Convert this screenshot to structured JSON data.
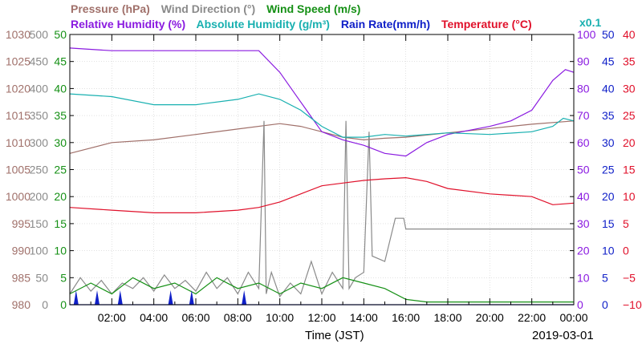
{
  "chart_data": {
    "type": "line",
    "header": {
      "row1": [
        {
          "text": "Pressure (hPa)",
          "color": "#a0706a"
        },
        {
          "text": "Wind Direction (°)",
          "color": "#8a8a8a"
        },
        {
          "text": "Wind Speed (m/s)",
          "color": "#159015"
        }
      ],
      "row2": [
        {
          "text": "Relative Humidity (%)",
          "color": "#8a1ae0"
        },
        {
          "text": "Absolute Humidity (g/m³)",
          "color": "#18b0b0"
        },
        {
          "text": "Rain Rate(mm/h)",
          "color": "#1020c8"
        },
        {
          "text": "Temperature (°C)",
          "color": "#e0102a"
        }
      ],
      "multiplier": "x0.1",
      "multiplier_color": "#18b0b0"
    },
    "xlabel": "Time (JST)",
    "date": "2019-03-01",
    "x_range_hours": [
      0,
      24
    ],
    "x_ticks": [
      "02:00",
      "04:00",
      "06:00",
      "08:00",
      "10:00",
      "12:00",
      "14:00",
      "16:00",
      "18:00",
      "20:00",
      "22:00",
      "00:00"
    ],
    "axes": {
      "pressure": {
        "color": "#a0706a",
        "range": [
          980,
          1030
        ],
        "ticks": [
          "980",
          "985",
          "990",
          "995",
          "1000",
          "1005",
          "1010",
          "1015",
          "1020",
          "1025",
          "1030"
        ]
      },
      "wind_direction": {
        "color": "#8a8a8a",
        "range": [
          0,
          500
        ],
        "ticks": [
          "0",
          "50",
          "100",
          "150",
          "200",
          "250",
          "300",
          "350",
          "400",
          "450",
          "500"
        ]
      },
      "wind_speed": {
        "color": "#159015",
        "range": [
          0,
          50
        ],
        "ticks": [
          "0",
          "5",
          "10",
          "15",
          "20",
          "25",
          "30",
          "35",
          "40",
          "45",
          "50"
        ]
      },
      "relative_humidity": {
        "color": "#8a1ae0",
        "range": [
          0,
          100
        ],
        "ticks": [
          "0",
          "10",
          "20",
          "30",
          "40",
          "50",
          "60",
          "70",
          "80",
          "90",
          "100"
        ]
      },
      "rain_rate": {
        "color": "#1020c8",
        "range": [
          0,
          50
        ],
        "ticks": [
          "0",
          "5",
          "10",
          "15",
          "20",
          "25",
          "30",
          "35",
          "40",
          "45",
          "50"
        ]
      },
      "temperature": {
        "color": "#e0102a",
        "range": [
          -10,
          40
        ],
        "ticks": [
          "−10",
          "−5",
          "0",
          "5",
          "10",
          "15",
          "20",
          "25",
          "30",
          "35",
          "40"
        ]
      }
    },
    "series": [
      {
        "name": "Pressure (hPa)",
        "axis": "pressure",
        "color": "#a0706a",
        "points": [
          [
            0,
            1008
          ],
          [
            2,
            1010
          ],
          [
            4,
            1010.5
          ],
          [
            6,
            1011.5
          ],
          [
            8,
            1012.5
          ],
          [
            10,
            1013.5
          ],
          [
            11,
            1013
          ],
          [
            12,
            1012
          ],
          [
            13,
            1011
          ],
          [
            14,
            1010.5
          ],
          [
            15,
            1010.8
          ],
          [
            16,
            1011
          ],
          [
            18,
            1011.8
          ],
          [
            20,
            1012.6
          ],
          [
            22,
            1013.4
          ],
          [
            24,
            1014
          ]
        ]
      },
      {
        "name": "Wind Direction (°)",
        "axis": "wind_direction",
        "color": "#8a8a8a",
        "points": [
          [
            0,
            20
          ],
          [
            0.5,
            50
          ],
          [
            1,
            25
          ],
          [
            1.5,
            45
          ],
          [
            2,
            20
          ],
          [
            2.5,
            40
          ],
          [
            3,
            30
          ],
          [
            3.5,
            50
          ],
          [
            4,
            25
          ],
          [
            4.5,
            55
          ],
          [
            5,
            30
          ],
          [
            5.5,
            45
          ],
          [
            6,
            25
          ],
          [
            6.5,
            60
          ],
          [
            7,
            30
          ],
          [
            7.5,
            50
          ],
          [
            8,
            20
          ],
          [
            8.5,
            60
          ],
          [
            9,
            30
          ],
          [
            9.25,
            340
          ],
          [
            9.35,
            20
          ],
          [
            9.6,
            60
          ],
          [
            10,
            15
          ],
          [
            10.5,
            40
          ],
          [
            11,
            20
          ],
          [
            11.5,
            80
          ],
          [
            12,
            20
          ],
          [
            12.5,
            60
          ],
          [
            13,
            30
          ],
          [
            13.15,
            340
          ],
          [
            13.3,
            30
          ],
          [
            13.6,
            50
          ],
          [
            14,
            60
          ],
          [
            14.25,
            320
          ],
          [
            14.4,
            90
          ],
          [
            15,
            80
          ],
          [
            15.5,
            160
          ],
          [
            15.9,
            160
          ],
          [
            16,
            140
          ],
          [
            17,
            140
          ],
          [
            20,
            140
          ],
          [
            24,
            140
          ]
        ]
      },
      {
        "name": "Wind Speed (m/s)",
        "axis": "wind_speed",
        "color": "#159015",
        "points": [
          [
            0,
            2
          ],
          [
            1,
            4
          ],
          [
            2,
            2
          ],
          [
            3,
            5
          ],
          [
            4,
            3
          ],
          [
            5,
            4
          ],
          [
            6,
            2
          ],
          [
            7,
            5
          ],
          [
            8,
            3
          ],
          [
            9,
            4
          ],
          [
            10,
            2
          ],
          [
            11,
            4
          ],
          [
            12,
            3
          ],
          [
            13,
            5
          ],
          [
            14,
            4
          ],
          [
            15,
            3
          ],
          [
            16,
            1
          ],
          [
            17,
            0.5
          ],
          [
            20,
            0.5
          ],
          [
            24,
            0.5
          ]
        ]
      },
      {
        "name": "Relative Humidity (%)",
        "axis": "relative_humidity",
        "color": "#8a1ae0",
        "points": [
          [
            0,
            95
          ],
          [
            2,
            94
          ],
          [
            4,
            94
          ],
          [
            6,
            94
          ],
          [
            8,
            94
          ],
          [
            9,
            94
          ],
          [
            10,
            86
          ],
          [
            11,
            75
          ],
          [
            12,
            64
          ],
          [
            13,
            61
          ],
          [
            14,
            59
          ],
          [
            15,
            56
          ],
          [
            16,
            55
          ],
          [
            17,
            60
          ],
          [
            18,
            63
          ],
          [
            20,
            66
          ],
          [
            21,
            68
          ],
          [
            22,
            72
          ],
          [
            23,
            83
          ],
          [
            23.6,
            87
          ],
          [
            24,
            86
          ]
        ]
      },
      {
        "name": "Absolute Humidity (g/m³)",
        "axis": "pressure",
        "color": "#18b0b0",
        "points": [
          [
            0,
            1019
          ],
          [
            2,
            1018.5
          ],
          [
            4,
            1017
          ],
          [
            6,
            1017
          ],
          [
            8,
            1018
          ],
          [
            9,
            1019
          ],
          [
            10,
            1018
          ],
          [
            11,
            1016
          ],
          [
            12,
            1013
          ],
          [
            13,
            1011
          ],
          [
            14,
            1011
          ],
          [
            15,
            1011.5
          ],
          [
            16,
            1011.2
          ],
          [
            17,
            1011.5
          ],
          [
            18,
            1011.8
          ],
          [
            20,
            1011.5
          ],
          [
            22,
            1012
          ],
          [
            23,
            1013
          ],
          [
            23.5,
            1014.5
          ],
          [
            24,
            1014
          ]
        ]
      },
      {
        "name": "Rain Rate(mm/h)",
        "axis": "rain_rate",
        "color": "#1020c8",
        "points": [
          [
            0,
            0
          ],
          [
            24,
            0
          ]
        ]
      },
      {
        "name": "Temperature (°C)",
        "axis": "temperature",
        "color": "#e0102a",
        "points": [
          [
            0,
            8
          ],
          [
            2,
            7.5
          ],
          [
            4,
            7
          ],
          [
            6,
            7
          ],
          [
            8,
            7.5
          ],
          [
            9,
            8
          ],
          [
            10,
            9
          ],
          [
            11,
            10.5
          ],
          [
            12,
            12
          ],
          [
            13,
            12.5
          ],
          [
            14,
            13
          ],
          [
            15,
            13.3
          ],
          [
            16,
            13.5
          ],
          [
            17,
            12.8
          ],
          [
            18,
            11.5
          ],
          [
            20,
            10.5
          ],
          [
            22,
            10
          ],
          [
            23,
            8.5
          ],
          [
            24,
            8.8
          ]
        ]
      }
    ],
    "spikes": [
      {
        "axis": "rain_rate",
        "color": "#1020c8",
        "x": [
          0.3,
          1.3,
          2.4,
          4.8,
          5.8,
          8.3
        ]
      }
    ]
  }
}
